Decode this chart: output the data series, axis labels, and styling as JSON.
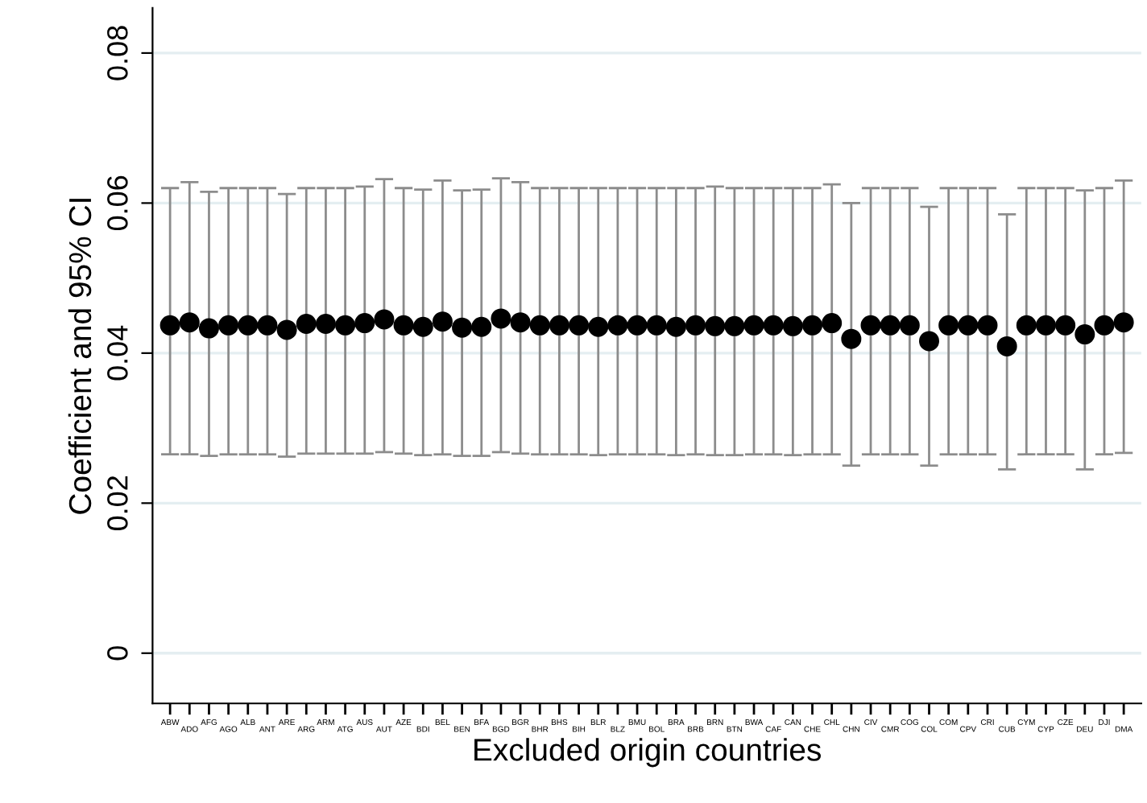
{
  "chart_data": {
    "type": "scatter",
    "xlabel": "Excluded origin countries",
    "ylabel": "Coefficient and 95% CI",
    "categories": [
      "ABW",
      "ADO",
      "AFG",
      "AGO",
      "ALB",
      "ANT",
      "ARE",
      "ARG",
      "ARM",
      "ATG",
      "AUS",
      "AUT",
      "AZE",
      "BDI",
      "BEL",
      "BEN",
      "BFA",
      "BGD",
      "BGR",
      "BHR",
      "BHS",
      "BIH",
      "BLR",
      "BLZ",
      "BMU",
      "BOL",
      "BRA",
      "BRB",
      "BRN",
      "BTN",
      "BWA",
      "CAF",
      "CAN",
      "CHE",
      "CHL",
      "CHN",
      "CIV",
      "CMR",
      "COG",
      "COL",
      "COM",
      "CPV",
      "CRI",
      "CUB",
      "CYM",
      "CYP",
      "CZE",
      "DEU",
      "DJI",
      "DMA"
    ],
    "series": [
      {
        "color": "#000000",
        "values": [
          0.0437,
          0.0441,
          0.0433,
          0.0437,
          0.0437,
          0.0437,
          0.0431,
          0.0439,
          0.0439,
          0.0437,
          0.044,
          0.0445,
          0.0437,
          0.0435,
          0.0442,
          0.0434,
          0.0435,
          0.0446,
          0.0441,
          0.0437,
          0.0437,
          0.0437,
          0.0435,
          0.0437,
          0.0437,
          0.0437,
          0.0435,
          0.0437,
          0.0436,
          0.0436,
          0.0437,
          0.0437,
          0.0436,
          0.0437,
          0.044,
          0.0419,
          0.0437,
          0.0437,
          0.0437,
          0.0416,
          0.0437,
          0.0437,
          0.0437,
          0.0409,
          0.0437,
          0.0437,
          0.0437,
          0.0425,
          0.0437,
          0.0441
        ],
        "errors": [
          [
            0.0265,
            0.062
          ],
          [
            0.0265,
            0.0628
          ],
          [
            0.0263,
            0.0615
          ],
          [
            0.0265,
            0.062
          ],
          [
            0.0265,
            0.062
          ],
          [
            0.0265,
            0.062
          ],
          [
            0.0262,
            0.0612
          ],
          [
            0.0266,
            0.062
          ],
          [
            0.0266,
            0.062
          ],
          [
            0.0266,
            0.062
          ],
          [
            0.0266,
            0.0622
          ],
          [
            0.0268,
            0.0632
          ],
          [
            0.0266,
            0.062
          ],
          [
            0.0264,
            0.0618
          ],
          [
            0.0265,
            0.063
          ],
          [
            0.0263,
            0.0617
          ],
          [
            0.0263,
            0.0618
          ],
          [
            0.0268,
            0.0633
          ],
          [
            0.0266,
            0.0628
          ],
          [
            0.0265,
            0.062
          ],
          [
            0.0265,
            0.062
          ],
          [
            0.0265,
            0.062
          ],
          [
            0.0264,
            0.062
          ],
          [
            0.0265,
            0.062
          ],
          [
            0.0265,
            0.062
          ],
          [
            0.0265,
            0.062
          ],
          [
            0.0264,
            0.062
          ],
          [
            0.0265,
            0.062
          ],
          [
            0.0264,
            0.0622
          ],
          [
            0.0264,
            0.062
          ],
          [
            0.0265,
            0.062
          ],
          [
            0.0265,
            0.062
          ],
          [
            0.0264,
            0.062
          ],
          [
            0.0265,
            0.062
          ],
          [
            0.0265,
            0.0625
          ],
          [
            0.025,
            0.06
          ],
          [
            0.0265,
            0.062
          ],
          [
            0.0265,
            0.062
          ],
          [
            0.0265,
            0.062
          ],
          [
            0.025,
            0.0595
          ],
          [
            0.0265,
            0.062
          ],
          [
            0.0265,
            0.062
          ],
          [
            0.0265,
            0.062
          ],
          [
            0.0245,
            0.0585
          ],
          [
            0.0265,
            0.062
          ],
          [
            0.0265,
            0.062
          ],
          [
            0.0265,
            0.062
          ],
          [
            0.0245,
            0.0617
          ],
          [
            0.0265,
            0.062
          ],
          [
            0.0267,
            0.063
          ]
        ]
      }
    ],
    "marker": "circle",
    "ylim": [
      -0.0067,
      0.086
    ],
    "yticks": [
      {
        "value": 0,
        "label": "0"
      },
      {
        "value": 0.02,
        "label": "0.02"
      },
      {
        "value": 0.04,
        "label": "0.04"
      },
      {
        "value": 0.06,
        "label": "0.06"
      },
      {
        "value": 0.08,
        "label": "0.08"
      }
    ],
    "grid": "y"
  }
}
